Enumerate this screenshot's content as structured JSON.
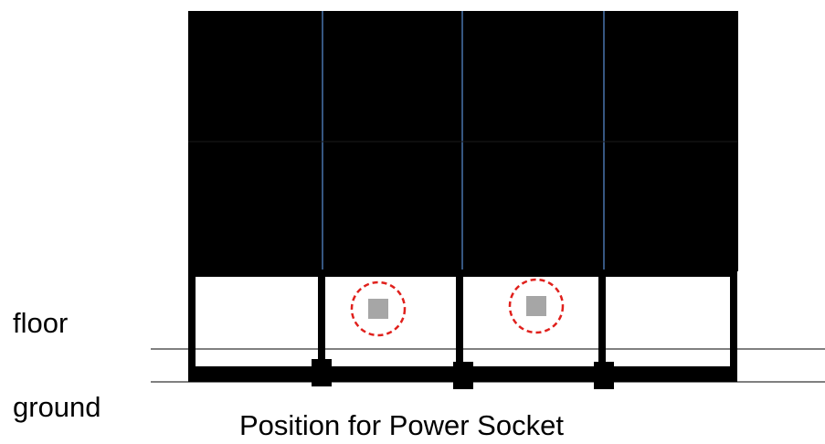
{
  "labels": {
    "floor": "floor",
    "ground": "ground",
    "caption": "Position for Power Socket"
  },
  "colors": {
    "panel_fill": "#000000",
    "divider_line": "#5b8fd6",
    "frame": "#000000",
    "cell_fill": "#ffffff",
    "socket_fill": "#a6a6a6",
    "socket_marker": "#e0201c",
    "reference_line": "#000000"
  },
  "layout_description": {
    "upper_panel_columns": 4,
    "upper_panel_rows": 2,
    "lower_cells": 4,
    "sockets_in_cells": [
      2,
      3
    ]
  }
}
